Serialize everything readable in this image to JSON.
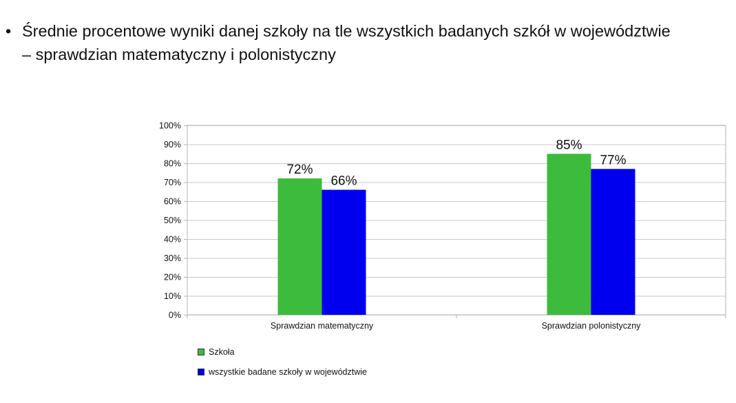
{
  "heading": {
    "bullet": "•",
    "line1": "Średnie procentowe wyniki danej szkoły na tle wszystkich badanych szkół w województwie",
    "line2": "– sprawdzian matematyczny i polonistyczny"
  },
  "chart_data": {
    "type": "bar",
    "categories": [
      "Sprawdzian matematyczny",
      "Sprawdzian polonistyczny"
    ],
    "series": [
      {
        "name": "Szkoła",
        "values": [
          72,
          85
        ],
        "color": "#3dbb3d"
      },
      {
        "name": "wszystkie badane szkoły w województwie",
        "values": [
          66,
          77
        ],
        "color": "#0000ee"
      }
    ],
    "ylim": [
      0,
      100
    ],
    "yticks": [
      0,
      10,
      20,
      30,
      40,
      50,
      60,
      70,
      80,
      90,
      100
    ],
    "ytick_suffix": "%",
    "value_suffix": "%",
    "grid": true,
    "legend_position": "bottom-left",
    "title": "",
    "xlabel": "",
    "ylabel": ""
  }
}
